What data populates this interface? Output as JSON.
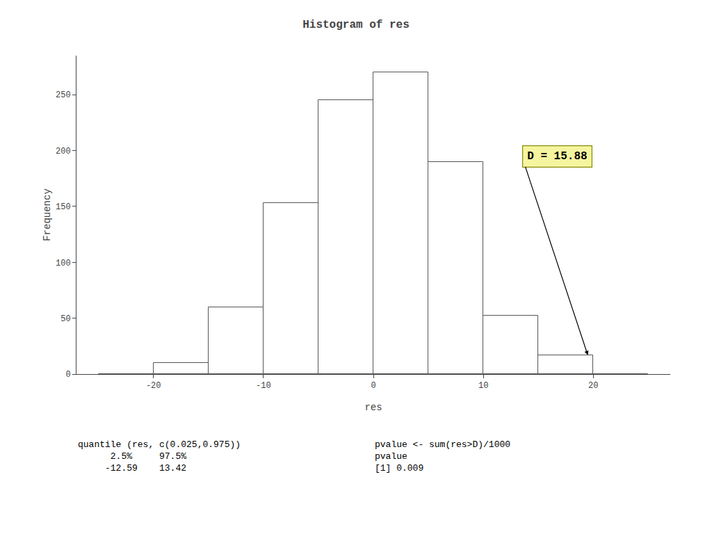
{
  "chart_data": {
    "type": "histogram",
    "title": "Histogram of res",
    "xlabel": "res",
    "ylabel": "Frequency",
    "bins": [
      -25,
      -20,
      -15,
      -10,
      -5,
      0,
      5,
      10,
      15,
      20,
      25
    ],
    "values": [
      0,
      10,
      60,
      153,
      245,
      270,
      190,
      52,
      17,
      0
    ],
    "color": "#ffffff",
    "xlim": [
      -27,
      27
    ],
    "ylim": [
      0,
      285
    ],
    "xticks": [
      -20,
      -10,
      0,
      10,
      20
    ],
    "yticks": [
      0,
      50,
      100,
      150,
      200,
      250
    ],
    "grid": false,
    "annotations": [
      {
        "text": "D = 15.88",
        "x": 19.5,
        "y": 17,
        "text_x": 13.5,
        "text_y": 195,
        "color": "#f5f5a0"
      }
    ],
    "notes": [
      "quantile (res, c(0.025,0.975))\n      2.5%     97.5%\n     -12.59    13.42",
      "pvalue <- sum(res>D)/1000\npvalue\n[1] 0.009"
    ]
  }
}
